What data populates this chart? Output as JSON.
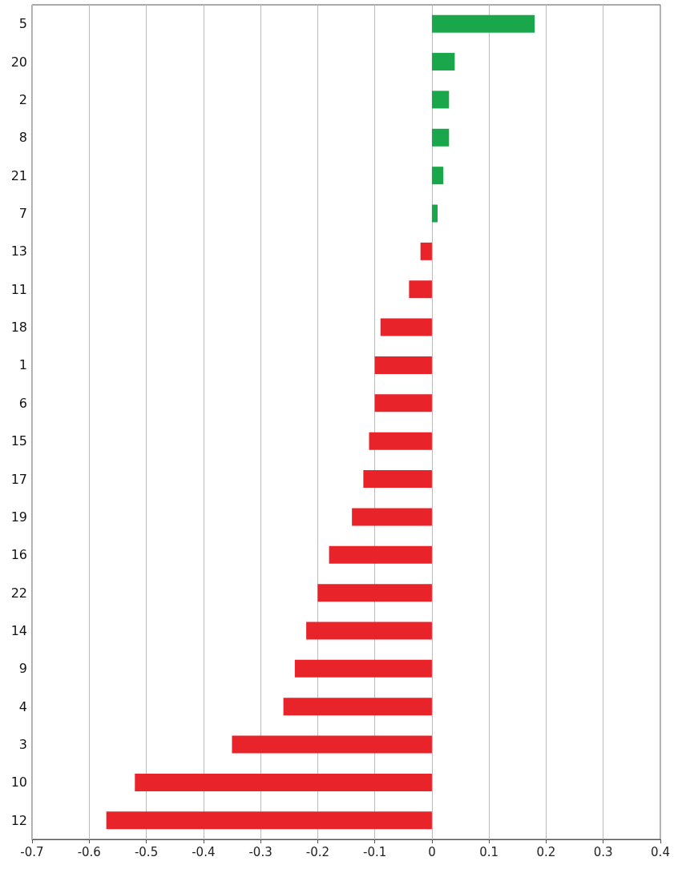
{
  "chart_data": {
    "type": "bar",
    "orientation": "horizontal",
    "categories": [
      "5",
      "20",
      "2",
      "8",
      "21",
      "7",
      "13",
      "11",
      "18",
      "1",
      "6",
      "15",
      "17",
      "19",
      "16",
      "22",
      "14",
      "9",
      "4",
      "3",
      "10",
      "12"
    ],
    "values": [
      0.18,
      0.04,
      0.03,
      0.03,
      0.02,
      0.01,
      -0.02,
      -0.04,
      -0.09,
      -0.1,
      -0.1,
      -0.11,
      -0.12,
      -0.14,
      -0.18,
      -0.2,
      -0.22,
      -0.24,
      -0.26,
      -0.35,
      -0.52,
      -0.57
    ],
    "colors": [
      "#1aa64a",
      "#1aa64a",
      "#1aa64a",
      "#1aa64a",
      "#1aa64a",
      "#1aa64a",
      "#e8232a",
      "#e8232a",
      "#e8232a",
      "#e8232a",
      "#e8232a",
      "#e8232a",
      "#e8232a",
      "#e8232a",
      "#e8232a",
      "#e8232a",
      "#e8232a",
      "#e8232a",
      "#e8232a",
      "#e8232a",
      "#e8232a",
      "#e8232a"
    ],
    "xlim": [
      -0.7,
      0.4
    ],
    "xticks": [
      -0.7,
      -0.6,
      -0.5,
      -0.4,
      -0.3,
      -0.2,
      -0.1,
      0,
      0.1,
      0.2,
      0.3,
      0.4
    ],
    "grid": "x"
  }
}
